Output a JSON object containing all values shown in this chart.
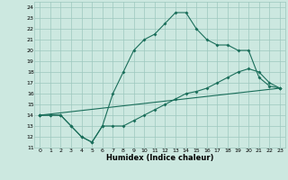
{
  "xlabel": "Humidex (Indice chaleur)",
  "xlim": [
    -0.5,
    23.5
  ],
  "ylim": [
    11,
    24.5
  ],
  "xticks": [
    0,
    1,
    2,
    3,
    4,
    5,
    6,
    7,
    8,
    9,
    10,
    11,
    12,
    13,
    14,
    15,
    16,
    17,
    18,
    19,
    20,
    21,
    22,
    23
  ],
  "yticks": [
    11,
    12,
    13,
    14,
    15,
    16,
    17,
    18,
    19,
    20,
    21,
    22,
    23,
    24
  ],
  "bg_color": "#cce8e0",
  "grid_color": "#9dc8be",
  "line_color": "#1a6e5a",
  "line1_x": [
    0,
    1,
    2,
    3,
    4,
    5,
    6,
    7,
    8,
    9,
    10,
    11,
    12,
    13,
    14,
    15,
    16,
    17,
    18,
    19,
    20,
    21,
    22,
    23
  ],
  "line1_y": [
    14,
    14,
    14,
    13,
    12,
    11.5,
    13,
    16,
    18,
    20,
    21,
    21.5,
    22.5,
    23.5,
    23.5,
    22,
    21,
    20.5,
    20.5,
    20,
    20,
    17.5,
    16.7,
    16.5
  ],
  "line2_x": [
    0,
    1,
    2,
    3,
    4,
    5,
    6,
    7,
    8,
    9,
    10,
    11,
    12,
    13,
    14,
    15,
    16,
    17,
    18,
    19,
    20,
    21,
    22,
    23
  ],
  "line2_y": [
    14,
    14,
    14,
    13,
    12,
    11.5,
    13,
    13,
    13,
    13.5,
    14,
    14.5,
    15,
    15.5,
    16,
    16.2,
    16.5,
    17,
    17.5,
    18,
    18.3,
    18,
    17,
    16.5
  ],
  "line3_x": [
    0,
    23
  ],
  "line3_y": [
    14,
    16.5
  ]
}
